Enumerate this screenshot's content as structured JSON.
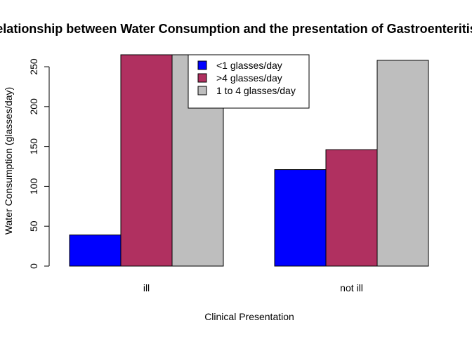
{
  "chart_data": {
    "type": "bar",
    "title": "Relationship between Water Consumption and the presentation of Gastroenteritis",
    "xlabel": "Clinical Presentation",
    "ylabel": "Water Consumption (glasses/day)",
    "categories": [
      "ill",
      "not ill"
    ],
    "series": [
      {
        "name": "<1 glasses/day",
        "values": [
          39,
          121
        ],
        "color": "#0000FF"
      },
      {
        "name": ">4 glasses/day",
        "values": [
          265,
          146
        ],
        "color": "#B03060"
      },
      {
        "name": "1 to 4 glasses/day",
        "values": [
          265,
          258
        ],
        "color": "#BEBEBE"
      }
    ],
    "ylim": [
      0,
      265
    ],
    "yticks": [
      0,
      50,
      100,
      150,
      200,
      250
    ],
    "grid": false,
    "legend_position": "top-center"
  }
}
